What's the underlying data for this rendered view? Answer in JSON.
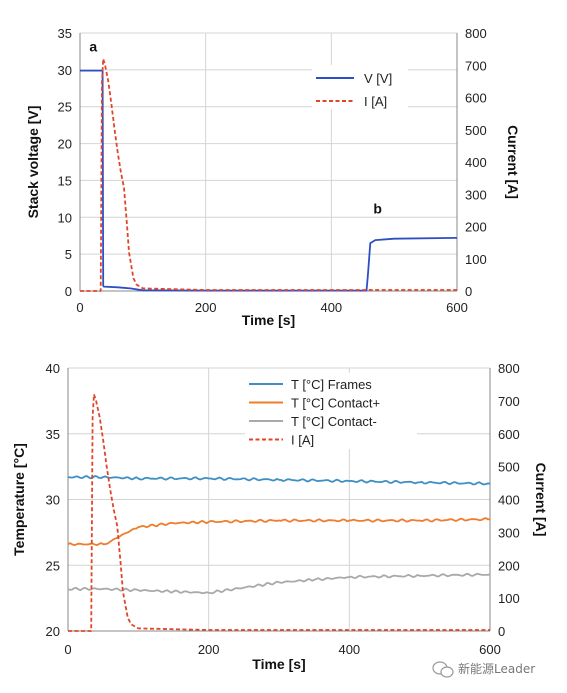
{
  "chart_data": [
    {
      "type": "line",
      "xlabel": "Time [s]",
      "ylabel": "Stack voltage [V]",
      "y2label": "Current [A]",
      "xlim": [
        0,
        600
      ],
      "ylim": [
        0,
        35
      ],
      "y2lim": [
        0,
        800
      ],
      "x_ticks": [
        "0",
        "200",
        "400",
        "600"
      ],
      "y_ticks": [
        "0",
        "5",
        "10",
        "15",
        "20",
        "25",
        "30",
        "35"
      ],
      "y2_ticks": [
        "0",
        "100",
        "200",
        "300",
        "400",
        "500",
        "600",
        "700",
        "800"
      ],
      "grid": true,
      "legend_position": "top-right",
      "annotations": [
        {
          "text": "a",
          "x": 15,
          "y": 32.5
        },
        {
          "text": "b",
          "x": 467,
          "y": 10.5
        }
      ],
      "series": [
        {
          "name": "V [V]",
          "axis": "left",
          "color": "#2e4fc4",
          "style": "solid",
          "x": [
            0,
            35,
            36,
            37,
            38,
            60,
            80,
            100,
            200,
            300,
            400,
            455,
            456,
            458,
            462,
            470,
            500,
            600
          ],
          "y": [
            29.9,
            29.9,
            29.9,
            0.7,
            0.6,
            0.5,
            0.35,
            0.1,
            0.05,
            0.05,
            0.05,
            0.05,
            0.05,
            2.0,
            6.5,
            6.9,
            7.1,
            7.2
          ]
        },
        {
          "name": "I [A]",
          "axis": "right",
          "color": "#e0452a",
          "style": "dashed",
          "x": [
            0,
            33,
            35,
            37,
            40,
            45,
            50,
            55,
            60,
            65,
            70,
            75,
            78,
            85,
            90,
            100,
            200,
            400,
            600
          ],
          "y": [
            0,
            0,
            650,
            720,
            700,
            650,
            580,
            500,
            430,
            370,
            320,
            200,
            120,
            40,
            20,
            8,
            3,
            3,
            3
          ]
        }
      ]
    },
    {
      "type": "line",
      "xlabel": "Time [s]",
      "ylabel": "Temperature [°C]",
      "y2label": "Current [A]",
      "xlim": [
        0,
        600
      ],
      "ylim": [
        20,
        40
      ],
      "y2lim": [
        0,
        800
      ],
      "x_ticks": [
        "0",
        "200",
        "400",
        "600"
      ],
      "y_ticks": [
        "20",
        "25",
        "30",
        "35",
        "40"
      ],
      "y2_ticks": [
        "0",
        "100",
        "200",
        "300",
        "400",
        "500",
        "600",
        "700",
        "800"
      ],
      "grid": true,
      "legend_position": "top-right",
      "series": [
        {
          "name": "T [°C] Frames",
          "axis": "left",
          "color": "#3d8fc4",
          "style": "solid",
          "x": [
            0,
            50,
            100,
            200,
            300,
            400,
            500,
            600
          ],
          "y": [
            31.7,
            31.7,
            31.6,
            31.6,
            31.5,
            31.4,
            31.3,
            31.2
          ]
        },
        {
          "name": "T [°C] Contact+",
          "axis": "left",
          "color": "#ef7d2c",
          "style": "solid",
          "x": [
            0,
            50,
            60,
            80,
            100,
            150,
            200,
            300,
            400,
            500,
            600
          ],
          "y": [
            26.6,
            26.6,
            26.8,
            27.4,
            27.9,
            28.2,
            28.3,
            28.4,
            28.4,
            28.4,
            28.5
          ]
        },
        {
          "name": "T [°C] Contact-",
          "axis": "left",
          "color": "#a9a9a9",
          "style": "solid",
          "x": [
            0,
            50,
            100,
            150,
            200,
            250,
            300,
            350,
            400,
            500,
            600
          ],
          "y": [
            23.2,
            23.2,
            23.1,
            23.0,
            22.9,
            23.3,
            23.7,
            23.9,
            24.1,
            24.2,
            24.3
          ]
        },
        {
          "name": "I [A]",
          "axis": "right",
          "color": "#e0452a",
          "style": "dashed",
          "x": [
            0,
            33,
            35,
            37,
            40,
            45,
            50,
            55,
            60,
            65,
            70,
            75,
            78,
            85,
            90,
            100,
            200,
            400,
            600
          ],
          "y": [
            0,
            0,
            650,
            720,
            700,
            650,
            580,
            500,
            430,
            370,
            320,
            200,
            120,
            40,
            20,
            8,
            3,
            3,
            3
          ]
        }
      ]
    }
  ],
  "watermark": {
    "text": "新能源Leader",
    "icon": "wechat-icon"
  }
}
